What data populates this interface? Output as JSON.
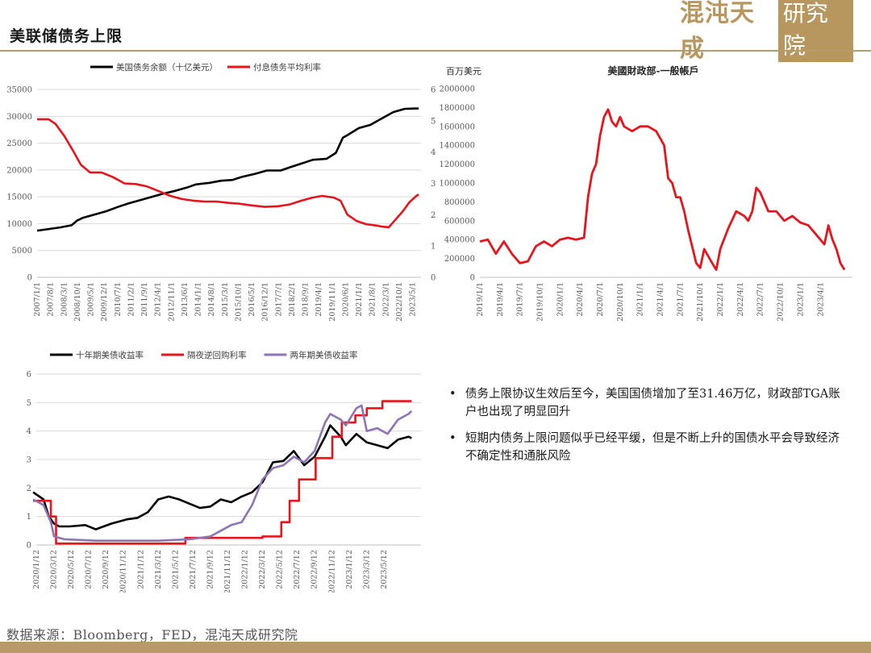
{
  "header": {
    "title": "美联储债务上限"
  },
  "logo": {
    "text": "混沌天成",
    "box_text": "研究院"
  },
  "bullets": [
    "债务上限协议生效后至今，美国国债增加了至31.46万亿，财政部TGA账户也出现了明显回升",
    "短期内债务上限问题似乎已经平缓，但是不断上升的国债水平会导致经济不确定性和通胀风险"
  ],
  "bullet_symbol": "•",
  "source": "数据来源：Bloomberg，FED，混沌天成研究院",
  "colors": {
    "black": "#000000",
    "red": "#e8141c",
    "purple": "#8e74b4",
    "gold": "#b89a6a",
    "grid": "#d9d9d9"
  },
  "chart_data": [
    {
      "type": "line",
      "title": "",
      "x_tick_labels": [
        "2007/1/1",
        "2007/8/1",
        "2008/3/1",
        "2008/10/1",
        "2009/5/1",
        "2009/12/1",
        "2010/7/1",
        "2011/2/1",
        "2011/9/1",
        "2012/4/1",
        "2012/11/1",
        "2013/6/1",
        "2014/1/1",
        "2014/8/1",
        "2015/3/1",
        "2015/10/1",
        "2016/5/1",
        "2016/12/1",
        "2017/7/1",
        "2018/2/1",
        "2018/9/1",
        "2019/4/1",
        "2019/11/1",
        "2020/6/1",
        "2021/1/1",
        "2021/8/1",
        "2022/3/1",
        "2022/10/1",
        "2023/5/1"
      ],
      "y_left": {
        "ticks": [
          "0",
          "5000",
          "10000",
          "15000",
          "20000",
          "25000",
          "30000",
          "35000"
        ],
        "min": 0,
        "max": 35000
      },
      "y_right": {
        "ticks": [
          "0",
          "1",
          "2",
          "3",
          "4",
          "5",
          "6"
        ],
        "min": 0,
        "max": 6
      },
      "series": [
        {
          "name": "美国债务余额（十亿美元）",
          "color": "#000000",
          "axis": "left",
          "x": [
            2007.0,
            2007.5,
            2008.0,
            2008.5,
            2008.75,
            2009.0,
            2009.5,
            2010.0,
            2010.5,
            2011.0,
            2011.5,
            2012.0,
            2012.5,
            2013.0,
            2013.5,
            2013.9,
            2014.5,
            2015.0,
            2015.5,
            2015.9,
            2016.5,
            2017.0,
            2017.6,
            2018.0,
            2018.5,
            2019.0,
            2019.6,
            2020.0,
            2020.3,
            2020.5,
            2021.0,
            2021.5,
            2022.0,
            2022.5,
            2023.0,
            2023.45,
            2023.6
          ],
          "y": [
            8700,
            9000,
            9300,
            9700,
            10600,
            11100,
            11700,
            12300,
            13100,
            13800,
            14400,
            15000,
            15600,
            16100,
            16700,
            17300,
            17600,
            18000,
            18150,
            18700,
            19300,
            19900,
            19900,
            20500,
            21200,
            21900,
            22100,
            23200,
            26000,
            26500,
            27800,
            28400,
            29600,
            30800,
            31400,
            31450,
            31460
          ]
        },
        {
          "name": "付息债务平均利率",
          "color": "#e8141c",
          "axis": "right",
          "x": [
            2007.0,
            2007.5,
            2007.8,
            2008.2,
            2008.6,
            2008.9,
            2009.3,
            2009.8,
            2010.3,
            2010.8,
            2011.3,
            2011.8,
            2012.3,
            2012.8,
            2013.3,
            2013.8,
            2014.3,
            2014.8,
            2015.3,
            2015.8,
            2016.3,
            2016.9,
            2017.5,
            2018.0,
            2018.5,
            2019.0,
            2019.4,
            2019.9,
            2020.2,
            2020.5,
            2020.9,
            2021.3,
            2021.8,
            2022.0,
            2022.3,
            2022.6,
            2022.9,
            2023.2,
            2023.5,
            2023.6
          ],
          "y": [
            5.05,
            5.05,
            4.9,
            4.5,
            4.0,
            3.6,
            3.35,
            3.35,
            3.2,
            3.0,
            2.98,
            2.9,
            2.75,
            2.6,
            2.5,
            2.45,
            2.42,
            2.42,
            2.38,
            2.35,
            2.3,
            2.25,
            2.27,
            2.33,
            2.45,
            2.55,
            2.6,
            2.55,
            2.45,
            2.0,
            1.8,
            1.7,
            1.65,
            1.62,
            1.6,
            1.85,
            2.1,
            2.4,
            2.6,
            2.65
          ]
        }
      ]
    },
    {
      "type": "line",
      "title": "美國財政部-一般帳戶",
      "ylabel": "百万美元",
      "x_tick_labels": [
        "2019/1/1",
        "2019/4/1",
        "2019/7/1",
        "2019/10/1",
        "2020/1/1",
        "2020/4/1",
        "2020/7/1",
        "2020/10/1",
        "2021/1/1",
        "2021/4/1",
        "2021/7/1",
        "2021/10/1",
        "2022/1/1",
        "2022/4/1",
        "2022/7/1",
        "2022/10/1",
        "2023/1/1",
        "2023/4/1"
      ],
      "y": {
        "ticks": [
          "0",
          "200000",
          "400000",
          "600000",
          "800000",
          "1000000",
          "1200000",
          "1400000",
          "1600000",
          "1800000",
          "2000000"
        ],
        "min": 0,
        "max": 2000000
      },
      "series": [
        {
          "name": "",
          "color": "#e8141c",
          "x": [
            2019.0,
            2019.1,
            2019.2,
            2019.3,
            2019.4,
            2019.5,
            2019.6,
            2019.7,
            2019.8,
            2019.9,
            2020.0,
            2020.1,
            2020.2,
            2020.3,
            2020.35,
            2020.4,
            2020.45,
            2020.5,
            2020.55,
            2020.6,
            2020.65,
            2020.7,
            2020.75,
            2020.8,
            2020.9,
            2021.0,
            2021.1,
            2021.2,
            2021.3,
            2021.35,
            2021.4,
            2021.45,
            2021.5,
            2021.55,
            2021.6,
            2021.7,
            2021.75,
            2021.8,
            2021.9,
            2021.95,
            2022.0,
            2022.1,
            2022.2,
            2022.3,
            2022.35,
            2022.4,
            2022.45,
            2022.5,
            2022.6,
            2022.7,
            2022.8,
            2022.9,
            2023.0,
            2023.1,
            2023.2,
            2023.3,
            2023.35,
            2023.4,
            2023.45,
            2023.5,
            2023.55
          ],
          "y": [
            380000,
            400000,
            250000,
            380000,
            250000,
            150000,
            170000,
            330000,
            380000,
            330000,
            400000,
            420000,
            400000,
            420000,
            850000,
            1100000,
            1200000,
            1500000,
            1700000,
            1780000,
            1650000,
            1600000,
            1700000,
            1600000,
            1550000,
            1600000,
            1600000,
            1550000,
            1400000,
            1050000,
            1000000,
            850000,
            850000,
            700000,
            500000,
            150000,
            100000,
            300000,
            150000,
            80000,
            300000,
            520000,
            700000,
            650000,
            600000,
            700000,
            950000,
            900000,
            700000,
            700000,
            600000,
            650000,
            580000,
            550000,
            450000,
            350000,
            550000,
            400000,
            300000,
            150000,
            80000
          ]
        }
      ]
    },
    {
      "type": "line",
      "title": "",
      "x_tick_labels": [
        "2020/1/12",
        "2020/3/12",
        "2020/5/12",
        "2020/7/12",
        "2020/9/12",
        "2020/11/12",
        "2021/1/12",
        "2021/3/12",
        "2021/5/12",
        "2021/7/12",
        "2021/9/12",
        "2021/11/12",
        "2022/1/12",
        "2022/3/12",
        "2022/5/12",
        "2022/7/12",
        "2022/9/12",
        "2022/11/12",
        "2023/1/12",
        "2023/3/12",
        "2023/5/12"
      ],
      "y": {
        "ticks": [
          "0",
          "1",
          "2",
          "3",
          "4",
          "5",
          "6"
        ],
        "min": 0,
        "max": 6
      },
      "series": [
        {
          "name": "十年期美债收益率",
          "color": "#000000",
          "x": [
            2020.0,
            2020.1,
            2020.15,
            2020.2,
            2020.25,
            2020.35,
            2020.5,
            2020.6,
            2020.75,
            2020.9,
            2021.0,
            2021.1,
            2021.2,
            2021.3,
            2021.4,
            2021.5,
            2021.6,
            2021.7,
            2021.8,
            2021.9,
            2022.0,
            2022.1,
            2022.2,
            2022.3,
            2022.4,
            2022.5,
            2022.6,
            2022.7,
            2022.8,
            2022.85,
            2022.95,
            2023.0,
            2023.1,
            2023.2,
            2023.3,
            2023.4,
            2023.5,
            2023.6,
            2023.63
          ],
          "y": [
            1.85,
            1.6,
            1.0,
            0.75,
            0.65,
            0.65,
            0.7,
            0.55,
            0.75,
            0.9,
            0.95,
            1.15,
            1.6,
            1.7,
            1.6,
            1.45,
            1.3,
            1.35,
            1.6,
            1.5,
            1.7,
            1.85,
            2.2,
            2.9,
            2.95,
            3.3,
            2.8,
            3.1,
            3.8,
            4.2,
            3.8,
            3.5,
            3.9,
            3.6,
            3.5,
            3.4,
            3.7,
            3.8,
            3.75
          ]
        },
        {
          "name": "隔夜逆回购利率",
          "color": "#e8141c",
          "x": [
            2020.0,
            2020.17,
            2020.17,
            2020.22,
            2020.22,
            2021.46,
            2021.46,
            2022.2,
            2022.2,
            2022.38,
            2022.38,
            2022.46,
            2022.46,
            2022.55,
            2022.55,
            2022.71,
            2022.71,
            2022.87,
            2022.87,
            2022.96,
            2022.96,
            2023.09,
            2023.09,
            2023.2,
            2023.2,
            2023.35,
            2023.35,
            2023.63
          ],
          "y": [
            1.55,
            1.55,
            1.0,
            1.0,
            0.05,
            0.05,
            0.25,
            0.25,
            0.3,
            0.3,
            0.8,
            0.8,
            1.55,
            1.55,
            2.3,
            2.3,
            3.05,
            3.05,
            3.8,
            3.8,
            4.3,
            4.3,
            4.55,
            4.55,
            4.8,
            4.8,
            5.05,
            5.05
          ]
        },
        {
          "name": "两年期美债收益率",
          "color": "#8e74b4",
          "x": [
            2020.0,
            2020.1,
            2020.17,
            2020.2,
            2020.3,
            2020.6,
            2020.9,
            2021.2,
            2021.5,
            2021.7,
            2021.8,
            2021.9,
            2022.0,
            2022.1,
            2022.2,
            2022.3,
            2022.4,
            2022.5,
            2022.6,
            2022.7,
            2022.8,
            2022.85,
            2022.95,
            2023.0,
            2023.1,
            2023.15,
            2023.2,
            2023.3,
            2023.4,
            2023.5,
            2023.6,
            2023.63
          ],
          "y": [
            1.6,
            1.4,
            0.8,
            0.3,
            0.2,
            0.15,
            0.15,
            0.15,
            0.2,
            0.3,
            0.5,
            0.7,
            0.8,
            1.4,
            2.3,
            2.7,
            2.8,
            3.1,
            2.9,
            3.3,
            4.3,
            4.6,
            4.4,
            4.2,
            4.8,
            4.9,
            4.0,
            4.1,
            3.9,
            4.4,
            4.6,
            4.7
          ]
        }
      ]
    }
  ]
}
